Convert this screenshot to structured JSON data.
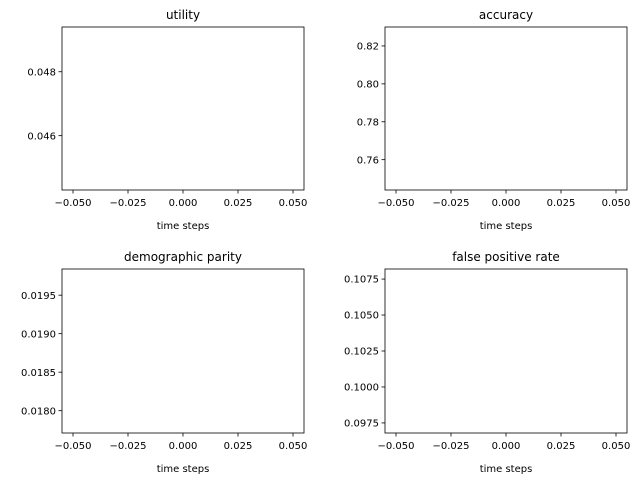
{
  "chart_data": [
    {
      "type": "line",
      "title": "utility",
      "xlabel": "time steps",
      "ylabel": "",
      "xlim": [
        -0.055,
        0.055
      ],
      "ylim": [
        0.0443,
        0.0494
      ],
      "xticks": [
        -0.05,
        -0.025,
        0.0,
        0.025,
        0.05
      ],
      "xtick_labels": [
        "−0.050",
        "−0.025",
        "0.000",
        "0.025",
        "0.050"
      ],
      "yticks": [
        0.046,
        0.048
      ],
      "ytick_labels": [
        "0.046",
        "0.048"
      ],
      "series": [],
      "grid": false
    },
    {
      "type": "line",
      "title": "accuracy",
      "xlabel": "time steps",
      "ylabel": "",
      "xlim": [
        -0.055,
        0.055
      ],
      "ylim": [
        0.744,
        0.83
      ],
      "xticks": [
        -0.05,
        -0.025,
        0.0,
        0.025,
        0.05
      ],
      "xtick_labels": [
        "−0.050",
        "−0.025",
        "0.000",
        "0.025",
        "0.050"
      ],
      "yticks": [
        0.76,
        0.78,
        0.8,
        0.82
      ],
      "ytick_labels": [
        "0.76",
        "0.78",
        "0.80",
        "0.82"
      ],
      "series": [],
      "grid": false
    },
    {
      "type": "line",
      "title": "demographic parity",
      "xlabel": "time steps",
      "ylabel": "",
      "xlim": [
        -0.055,
        0.055
      ],
      "ylim": [
        0.01771,
        0.01984
      ],
      "xticks": [
        -0.05,
        -0.025,
        0.0,
        0.025,
        0.05
      ],
      "xtick_labels": [
        "−0.050",
        "−0.025",
        "0.000",
        "0.025",
        "0.050"
      ],
      "yticks": [
        0.018,
        0.0185,
        0.019,
        0.0195
      ],
      "ytick_labels": [
        "0.0180",
        "0.0185",
        "0.0190",
        "0.0195"
      ],
      "series": [],
      "grid": false
    },
    {
      "type": "line",
      "title": "false positive rate",
      "xlabel": "time steps",
      "ylabel": "",
      "xlim": [
        -0.055,
        0.055
      ],
      "ylim": [
        0.0968,
        0.1082
      ],
      "xticks": [
        -0.05,
        -0.025,
        0.0,
        0.025,
        0.05
      ],
      "xtick_labels": [
        "−0.050",
        "−0.025",
        "0.000",
        "0.025",
        "0.050"
      ],
      "yticks": [
        0.0975,
        0.1,
        0.1025,
        0.105,
        0.1075
      ],
      "ytick_labels": [
        "0.0975",
        "0.1000",
        "0.1025",
        "0.1050",
        "0.1075"
      ],
      "series": [],
      "grid": false
    }
  ]
}
